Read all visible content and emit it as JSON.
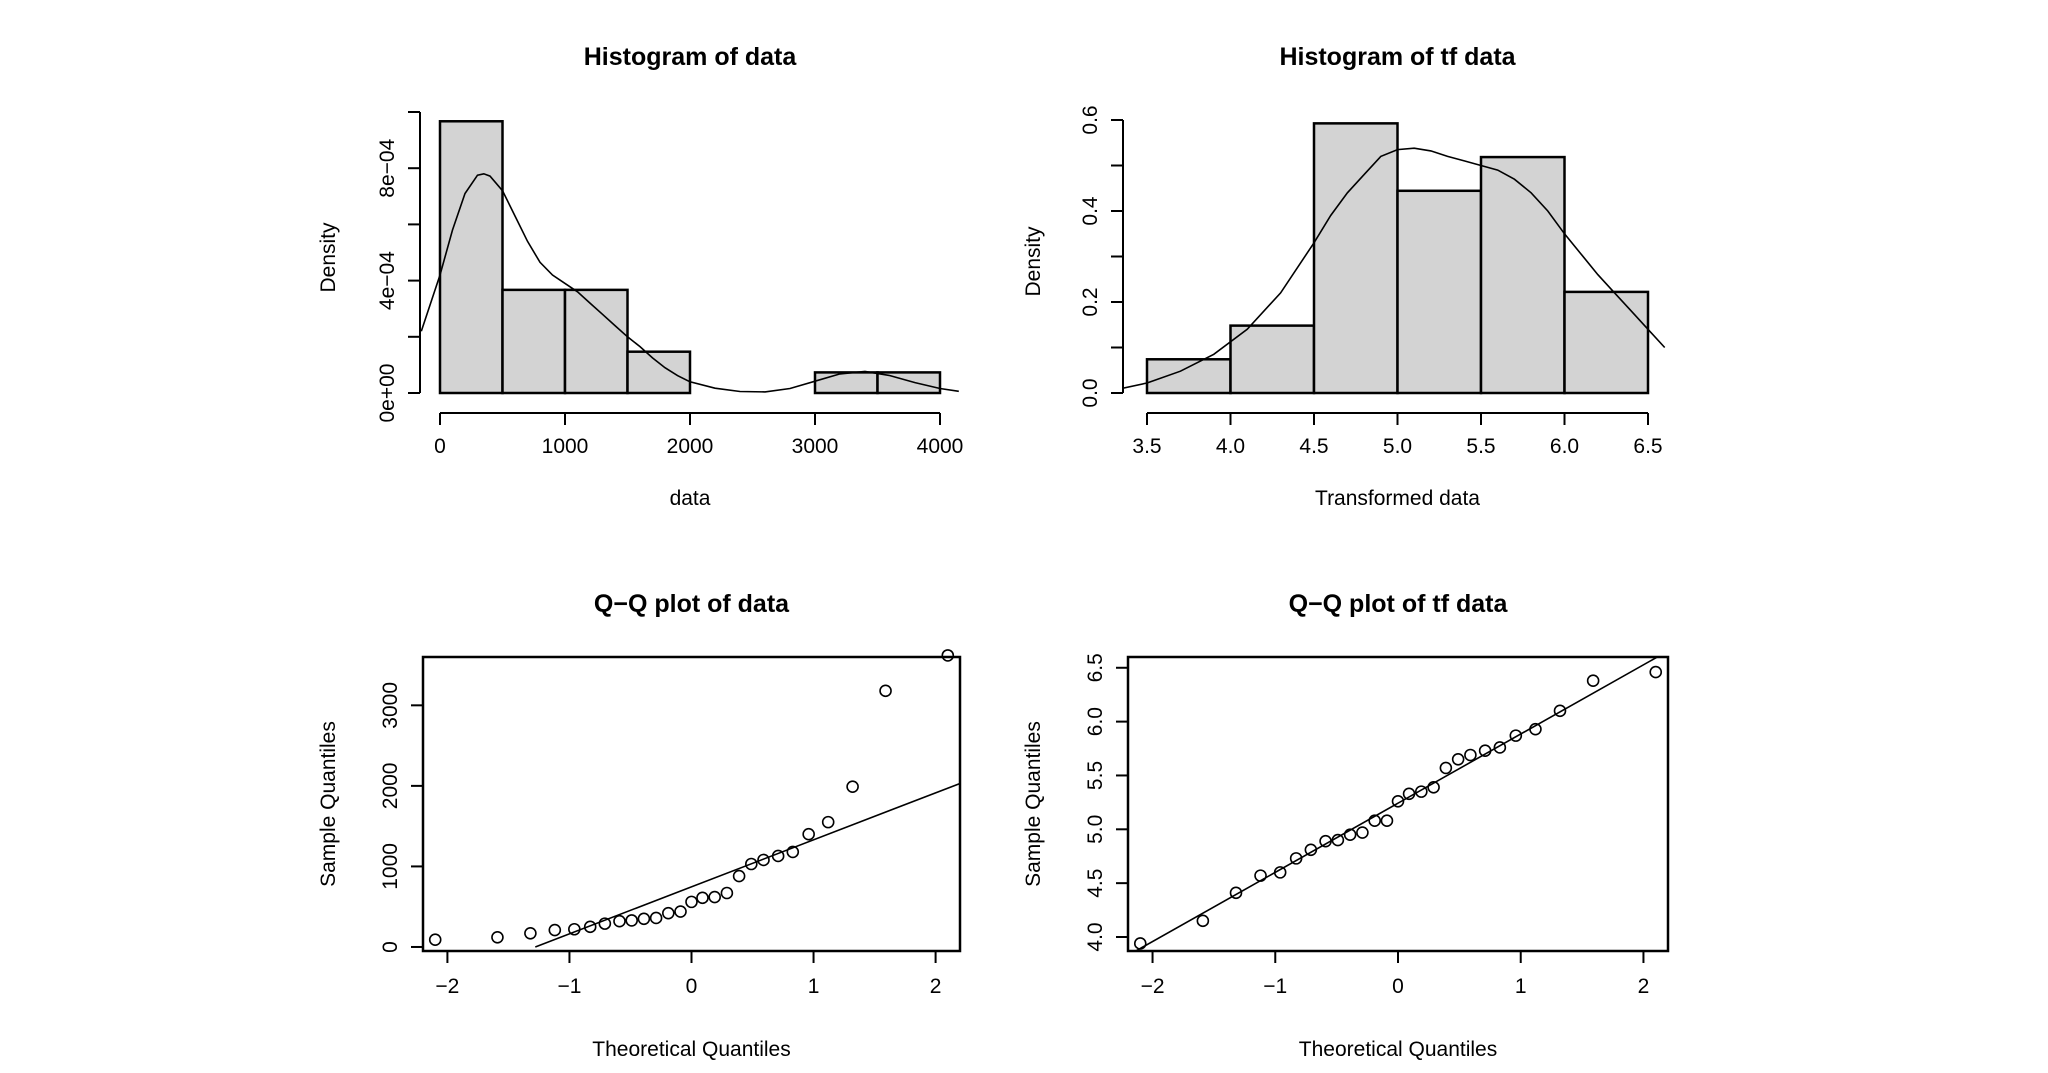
{
  "chart_data": [
    {
      "type": "bar",
      "title": "Histogram of data",
      "xlabel": "data",
      "ylabel": "Density",
      "bin_edges": [
        0,
        500,
        1000,
        1500,
        2000,
        2500,
        3000,
        3500,
        4000
      ],
      "values": [
        0.000967,
        0.000367,
        0.000367,
        0.000147,
        0,
        0,
        7.33e-05,
        7.33e-05
      ],
      "xlim": [
        0,
        4000
      ],
      "ylim": [
        0,
        0.001
      ],
      "xticks": [
        {
          "v": 0,
          "label": "0"
        },
        {
          "v": 1000,
          "label": "1000"
        },
        {
          "v": 2000,
          "label": "2000"
        },
        {
          "v": 3000,
          "label": "3000"
        },
        {
          "v": 4000,
          "label": "4000"
        }
      ],
      "yticks": [
        {
          "v": 0,
          "label": "0e+00"
        },
        {
          "v": 0.0002,
          "label": ""
        },
        {
          "v": 0.0004,
          "label": "4e−04"
        },
        {
          "v": 0.0006,
          "label": ""
        },
        {
          "v": 0.0008,
          "label": "8e−04"
        },
        {
          "v": 0.001,
          "label": ""
        }
      ],
      "density_curve": {
        "x": [
          -150,
          0,
          100,
          200,
          300,
          350,
          400,
          500,
          600,
          700,
          800,
          900,
          1000,
          1100,
          1200,
          1300,
          1400,
          1500,
          1600,
          1700,
          1800,
          1900,
          2000,
          2200,
          2400,
          2600,
          2800,
          3000,
          3200,
          3400,
          3600,
          3800,
          4000,
          4150
        ],
        "y": [
          0.00022,
          0.00042,
          0.00058,
          0.00071,
          0.000775,
          0.00078,
          0.000772,
          0.00072,
          0.00063,
          0.00054,
          0.000465,
          0.00042,
          0.00039,
          0.00036,
          0.00032,
          0.00028,
          0.00024,
          0.0002,
          0.000165,
          0.000125,
          9e-05,
          6.2e-05,
          4e-05,
          1.7e-05,
          5.5e-06,
          4e-06,
          1.6e-05,
          4.2e-05,
          6.8e-05,
          7.7e-05,
          6.2e-05,
          3.7e-05,
          1.6e-05,
          6e-06
        ]
      }
    },
    {
      "type": "bar",
      "title": "Histogram of tf data",
      "xlabel": "Transformed data",
      "ylabel": "Density",
      "bin_edges": [
        3.5,
        4.0,
        4.5,
        5.0,
        5.5,
        6.0,
        6.5
      ],
      "values": [
        0.0741,
        0.1481,
        0.5926,
        0.4444,
        0.5185,
        0.2222
      ],
      "xlim": [
        3.5,
        6.5
      ],
      "ylim": [
        0,
        0.6
      ],
      "xticks": [
        {
          "v": 3.5,
          "label": "3.5"
        },
        {
          "v": 4.0,
          "label": "4.0"
        },
        {
          "v": 4.5,
          "label": "4.5"
        },
        {
          "v": 5.0,
          "label": "5.0"
        },
        {
          "v": 5.5,
          "label": "5.5"
        },
        {
          "v": 6.0,
          "label": "6.0"
        },
        {
          "v": 6.5,
          "label": "6.5"
        }
      ],
      "yticks": [
        {
          "v": 0,
          "label": "0.0"
        },
        {
          "v": 0.1,
          "label": ""
        },
        {
          "v": 0.2,
          "label": "0.2"
        },
        {
          "v": 0.3,
          "label": ""
        },
        {
          "v": 0.4,
          "label": "0.4"
        },
        {
          "v": 0.5,
          "label": ""
        },
        {
          "v": 0.6,
          "label": "0.6"
        }
      ],
      "density_curve": {
        "x": [
          3.35,
          3.5,
          3.7,
          3.9,
          4.1,
          4.3,
          4.5,
          4.6,
          4.7,
          4.8,
          4.9,
          5.0,
          5.1,
          5.2,
          5.3,
          5.4,
          5.5,
          5.6,
          5.7,
          5.8,
          5.9,
          6.0,
          6.1,
          6.2,
          6.3,
          6.4,
          6.5,
          6.6
        ],
        "y": [
          0.01,
          0.022,
          0.048,
          0.085,
          0.14,
          0.22,
          0.33,
          0.39,
          0.44,
          0.48,
          0.52,
          0.535,
          0.538,
          0.532,
          0.52,
          0.51,
          0.5,
          0.49,
          0.47,
          0.44,
          0.4,
          0.35,
          0.305,
          0.26,
          0.22,
          0.18,
          0.14,
          0.1
        ]
      }
    },
    {
      "type": "scatter",
      "title": "Q−Q plot of data",
      "xlabel": "Theoretical Quantiles",
      "ylabel": "Sample Quantiles",
      "xlim": [
        -2.2,
        2.2
      ],
      "ylim": [
        -50,
        3600
      ],
      "xticks": [
        {
          "v": -2,
          "label": "−2"
        },
        {
          "v": -1,
          "label": "−1"
        },
        {
          "v": 0,
          "label": "0"
        },
        {
          "v": 1,
          "label": "1"
        },
        {
          "v": 2,
          "label": "2"
        }
      ],
      "yticks": [
        {
          "v": 0,
          "label": "0"
        },
        {
          "v": 1000,
          "label": "1000"
        },
        {
          "v": 2000,
          "label": "2000"
        },
        {
          "v": 3000,
          "label": "3000"
        }
      ],
      "x": [
        -2.1,
        -1.59,
        -1.32,
        -1.12,
        -0.96,
        -0.83,
        -0.71,
        -0.59,
        -0.49,
        -0.39,
        -0.29,
        -0.19,
        -0.09,
        0.0,
        0.09,
        0.19,
        0.29,
        0.39,
        0.49,
        0.59,
        0.71,
        0.83,
        0.96,
        1.12,
        1.32,
        1.59,
        2.1
      ],
      "y": [
        90,
        120,
        170,
        210,
        220,
        250,
        290,
        320,
        330,
        350,
        360,
        420,
        440,
        560,
        610,
        620,
        670,
        880,
        1030,
        1080,
        1130,
        1180,
        1400,
        1550,
        1990,
        3180,
        3620
      ],
      "qq_line": {
        "x": [
          -1.28,
          2.2
        ],
        "y": [
          0,
          2030
        ]
      }
    },
    {
      "type": "scatter",
      "title": "Q−Q plot of tf data",
      "xlabel": "Theoretical Quantiles",
      "ylabel": "Sample Quantiles",
      "xlim": [
        -2.2,
        2.2
      ],
      "ylim": [
        3.87,
        6.6
      ],
      "xticks": [
        {
          "v": -2,
          "label": "−2"
        },
        {
          "v": -1,
          "label": "−1"
        },
        {
          "v": 0,
          "label": "0"
        },
        {
          "v": 1,
          "label": "1"
        },
        {
          "v": 2,
          "label": "2"
        }
      ],
      "yticks": [
        {
          "v": 4.0,
          "label": "4.0"
        },
        {
          "v": 4.5,
          "label": "4.5"
        },
        {
          "v": 5.0,
          "label": "5.0"
        },
        {
          "v": 5.5,
          "label": "5.5"
        },
        {
          "v": 6.0,
          "label": "6.0"
        },
        {
          "v": 6.5,
          "label": "6.5"
        }
      ],
      "x": [
        -2.1,
        -1.59,
        -1.32,
        -1.12,
        -0.96,
        -0.83,
        -0.71,
        -0.59,
        -0.49,
        -0.39,
        -0.29,
        -0.19,
        -0.09,
        0.0,
        0.09,
        0.19,
        0.29,
        0.39,
        0.49,
        0.59,
        0.71,
        0.83,
        0.96,
        1.12,
        1.32,
        1.59,
        2.1
      ],
      "y": [
        3.94,
        4.15,
        4.41,
        4.57,
        4.6,
        4.73,
        4.81,
        4.89,
        4.9,
        4.95,
        4.97,
        5.08,
        5.08,
        5.26,
        5.33,
        5.35,
        5.39,
        5.57,
        5.65,
        5.69,
        5.73,
        5.76,
        5.87,
        5.93,
        6.1,
        6.38,
        6.46
      ]
    }
  ]
}
